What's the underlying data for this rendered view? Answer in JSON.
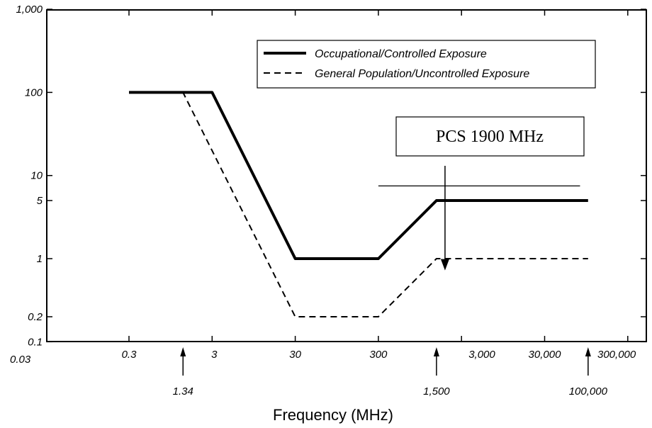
{
  "chart_data": {
    "type": "line",
    "title": "",
    "xlabel": "Frequency (MHz)",
    "ylabel": "",
    "x_scale": "log",
    "y_scale": "log",
    "xlim": [
      0.03,
      300000
    ],
    "ylim": [
      0.1,
      1000
    ],
    "x_ticks": [
      {
        "value": 0.03,
        "label": "0.03"
      },
      {
        "value": 0.3,
        "label": "0.3"
      },
      {
        "value": 3,
        "label": "3"
      },
      {
        "value": 30,
        "label": "30"
      },
      {
        "value": 300,
        "label": "300"
      },
      {
        "value": 3000,
        "label": "3,000"
      },
      {
        "value": 30000,
        "label": "30,000"
      },
      {
        "value": 300000,
        "label": "300,000"
      }
    ],
    "x_markers": [
      {
        "value": 1.34,
        "label": "1.34"
      },
      {
        "value": 1500,
        "label": "1,500"
      },
      {
        "value": 100000,
        "label": "100,000"
      }
    ],
    "y_ticks": [
      {
        "value": 0.1,
        "label": "0.1"
      },
      {
        "value": 0.2,
        "label": "0.2"
      },
      {
        "value": 1,
        "label": "1"
      },
      {
        "value": 5,
        "label": "5"
      },
      {
        "value": 10,
        "label": "10"
      },
      {
        "value": 100,
        "label": "100"
      },
      {
        "value": 1000,
        "label": "1,000"
      }
    ],
    "series": [
      {
        "name": "Occupational/Controlled Exposure",
        "style": "solid-thick",
        "x": [
          0.3,
          3,
          30,
          300,
          1500,
          100000
        ],
        "y": [
          100,
          100,
          1,
          1,
          5,
          5
        ]
      },
      {
        "name": "General Population/Uncontrolled Exposure",
        "style": "dashed",
        "x": [
          0.3,
          1.34,
          30,
          300,
          1500,
          100000
        ],
        "y": [
          100,
          100,
          0.2,
          0.2,
          1,
          1
        ]
      }
    ],
    "annotation": {
      "text": "PCS 1900 MHz",
      "x": 1900,
      "from_y": 7.5,
      "to_y": 0.75,
      "line_from_x": 300,
      "line_to_x": 80000
    },
    "legend_position": "top-right",
    "grid": false
  }
}
